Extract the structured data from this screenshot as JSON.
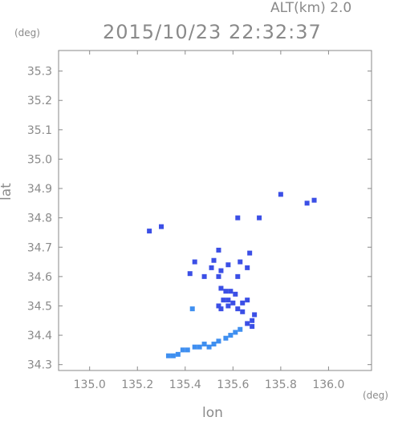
{
  "header": {
    "title": "2015/10/23 22:32:37",
    "altitude_label": "ALT(km) 2.0"
  },
  "axes": {
    "y_unit": "(deg)",
    "x_unit": "(deg)",
    "xlabel": "lon",
    "ylabel": "lat"
  },
  "colors": {
    "axis": "#8a8a8a",
    "echo_dark": "#3b4fe6",
    "echo_light": "#3f8ff0"
  },
  "chart_data": {
    "type": "scatter",
    "xlim": [
      134.87,
      136.18
    ],
    "ylim": [
      34.28,
      35.37
    ],
    "xticks": [
      "135.0",
      "135.2",
      "135.4",
      "135.6",
      "135.8",
      "136.0"
    ],
    "yticks": [
      "34.3",
      "34.4",
      "34.5",
      "34.6",
      "34.7",
      "34.8",
      "34.9",
      "35.0",
      "35.1",
      "35.2",
      "35.3"
    ],
    "grid": false,
    "series": [
      {
        "color": "#3b4fe6",
        "points": [
          [
            135.25,
            34.755
          ],
          [
            135.3,
            34.77
          ],
          [
            135.8,
            34.88
          ],
          [
            135.91,
            34.85
          ],
          [
            135.94,
            34.86
          ],
          [
            135.62,
            34.8
          ],
          [
            135.71,
            34.8
          ],
          [
            135.52,
            34.655
          ],
          [
            135.54,
            34.69
          ],
          [
            135.51,
            34.63
          ],
          [
            135.55,
            34.62
          ],
          [
            135.58,
            34.64
          ],
          [
            135.63,
            34.65
          ],
          [
            135.66,
            34.63
          ],
          [
            135.67,
            34.68
          ],
          [
            135.44,
            34.65
          ],
          [
            135.42,
            34.61
          ],
          [
            135.48,
            34.6
          ],
          [
            135.54,
            34.6
          ],
          [
            135.62,
            34.6
          ],
          [
            135.55,
            34.56
          ],
          [
            135.57,
            34.55
          ],
          [
            135.59,
            34.55
          ],
          [
            135.61,
            34.54
          ],
          [
            135.56,
            34.52
          ],
          [
            135.58,
            34.52
          ],
          [
            135.6,
            34.51
          ],
          [
            135.54,
            34.5
          ],
          [
            135.55,
            34.49
          ],
          [
            135.58,
            34.5
          ],
          [
            135.64,
            34.51
          ],
          [
            135.66,
            34.52
          ],
          [
            135.62,
            34.49
          ],
          [
            135.64,
            34.48
          ],
          [
            135.69,
            34.47
          ],
          [
            135.68,
            34.45
          ],
          [
            135.66,
            34.44
          ],
          [
            135.68,
            34.43
          ]
        ]
      },
      {
        "color": "#3f8ff0",
        "points": [
          [
            135.63,
            34.42
          ],
          [
            135.61,
            34.41
          ],
          [
            135.59,
            34.4
          ],
          [
            135.57,
            34.39
          ],
          [
            135.54,
            34.38
          ],
          [
            135.52,
            34.37
          ],
          [
            135.48,
            34.37
          ],
          [
            135.44,
            34.36
          ],
          [
            135.41,
            34.35
          ],
          [
            135.39,
            34.35
          ],
          [
            135.37,
            34.335
          ],
          [
            135.35,
            34.33
          ],
          [
            135.46,
            34.36
          ],
          [
            135.5,
            34.36
          ],
          [
            135.33,
            34.33
          ],
          [
            135.43,
            34.49
          ]
        ]
      }
    ]
  }
}
